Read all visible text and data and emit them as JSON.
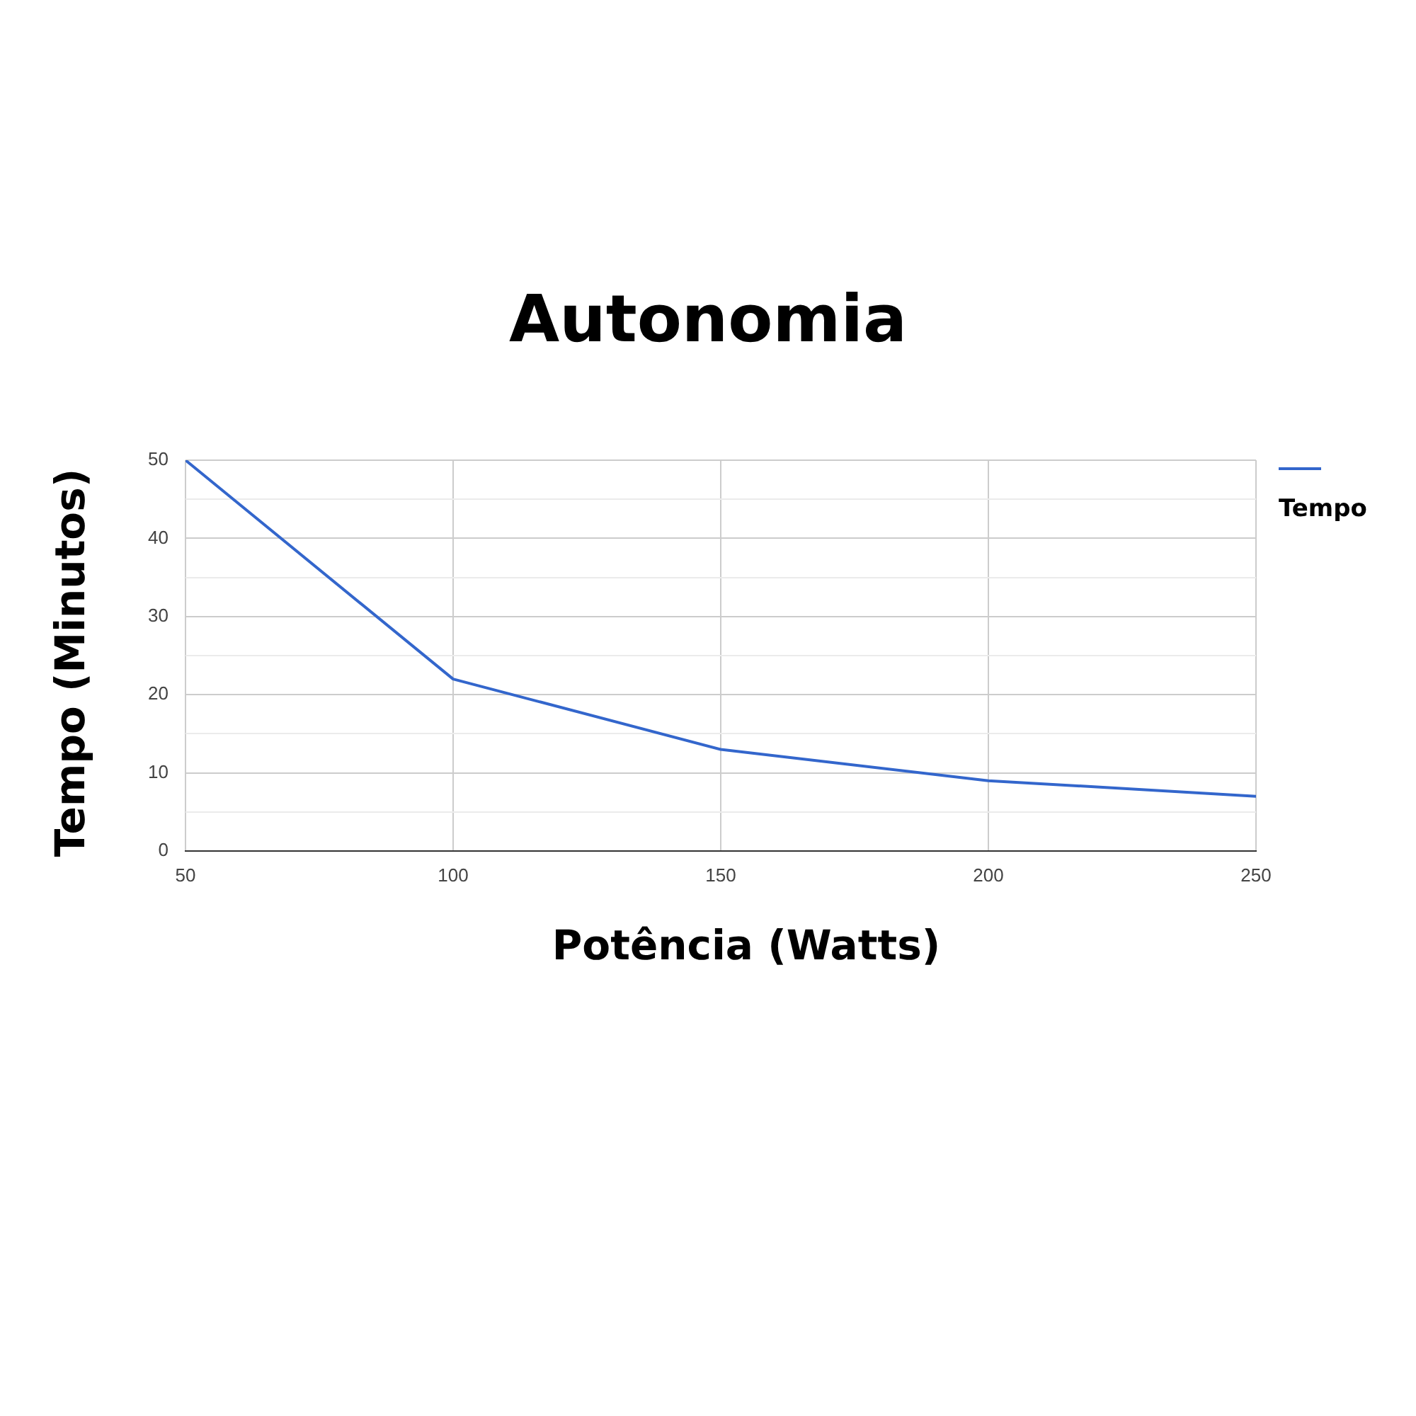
{
  "chart_data": {
    "type": "line",
    "title": "Autonomia",
    "xlabel": "Potência (Watts)",
    "ylabel": "Tempo (Minutos)",
    "x": [
      50,
      100,
      150,
      200,
      250
    ],
    "series": [
      {
        "name": "Tempo",
        "color": "#3366cc",
        "values": [
          50,
          22,
          13,
          9,
          7
        ]
      }
    ],
    "xlim": [
      50,
      250
    ],
    "xticks": [
      50,
      100,
      150,
      200,
      250
    ],
    "ylim": [
      0,
      50
    ],
    "yticks": [
      0,
      {
        "value": 5,
        "label": null
      },
      10,
      {
        "value": 15,
        "label": null
      },
      20,
      {
        "value": 25,
        "label": null
      },
      30,
      {
        "value": 35,
        "label": null
      },
      40,
      {
        "value": 45,
        "label": null
      },
      50
    ],
    "grid": true,
    "legend": "right",
    "marker": "none",
    "line_style": "solid"
  }
}
